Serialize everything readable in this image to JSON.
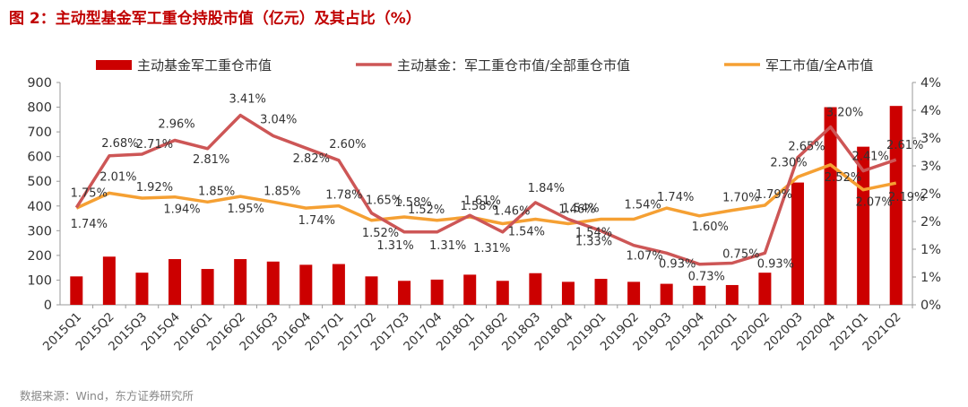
{
  "title": "图 2：主动型基金军工重仓持股市值（亿元）及其占比（%）",
  "source": "数据来源：Wind，东方证券研究所",
  "colors": {
    "bar": "#cc0000",
    "line_share": "#cd5656",
    "line_market": "#f5a033",
    "title": "#c00000"
  },
  "chart_data": {
    "type": "bar",
    "categories": [
      "2015Q1",
      "2015Q2",
      "2015Q3",
      "2015Q4",
      "2016Q1",
      "2016Q2",
      "2016Q3",
      "2016Q4",
      "2017Q1",
      "2017Q2",
      "2017Q3",
      "2017Q4",
      "2018Q1",
      "2018Q2",
      "2018Q3",
      "2018Q4",
      "2019Q1",
      "2019Q2",
      "2019Q3",
      "2019Q4",
      "2020Q1",
      "2020Q2",
      "2020Q3",
      "2020Q4",
      "2021Q1",
      "2021Q2"
    ],
    "legend_position": "top",
    "series": [
      {
        "name": "主动基金军工重仓市值",
        "type": "bar",
        "axis": "left",
        "values": [
          115,
          195,
          130,
          185,
          145,
          185,
          175,
          162,
          165,
          115,
          97,
          102,
          122,
          97,
          128,
          93,
          105,
          93,
          85,
          77,
          80,
          130,
          495,
          800,
          640,
          805
        ]
      },
      {
        "name": "主动基金：军工重仓市值/全部重仓市值",
        "type": "line",
        "axis": "right",
        "values": [
          1.75,
          2.68,
          2.71,
          2.96,
          2.81,
          3.41,
          3.04,
          2.82,
          2.6,
          1.65,
          1.31,
          1.31,
          1.61,
          1.31,
          1.84,
          1.54,
          1.33,
          1.07,
          0.93,
          0.73,
          0.75,
          0.93,
          2.65,
          3.2,
          2.41,
          2.61
        ],
        "labels": [
          "1.75%",
          "2.68%",
          "2.71%",
          "2.96%",
          "2.81%",
          "3.41%",
          "3.04%",
          "2.82%",
          "2.60%",
          "1.65%",
          "1.31%",
          "1.31%",
          "1.61%",
          "1.31%",
          "1.84%",
          "1.54%",
          "1.33%",
          "1.07%",
          "0.93%",
          "0.73%",
          "0.75%",
          "0.93%",
          "2.65%",
          "3.20%",
          "2.41%",
          "2.61%"
        ]
      },
      {
        "name": "军工市值/全A市值",
        "type": "line",
        "axis": "right",
        "values": [
          1.74,
          2.01,
          1.92,
          1.94,
          1.85,
          1.95,
          1.85,
          1.74,
          1.78,
          1.52,
          1.58,
          1.52,
          1.58,
          1.46,
          1.54,
          1.46,
          1.54,
          1.54,
          1.74,
          1.6,
          1.7,
          1.79,
          2.3,
          2.52,
          2.07,
          2.19
        ],
        "labels": [
          "1.74%",
          "2.01%",
          "1.92%",
          "1.94%",
          "1.85%",
          "1.95%",
          "1.85%",
          "1.74%",
          "1.78%",
          "1.52%",
          "1.58%",
          "1.52%",
          "1.58%",
          "1.46%",
          "1.54%",
          "1.46%",
          "1.54%",
          "1.54%",
          "1.74%",
          "1.60%",
          "1.70%",
          "1.79%",
          "2.30%",
          "2.52%",
          "2.07%",
          "2.19%"
        ]
      }
    ],
    "y_left": {
      "ylim": [
        0,
        900
      ],
      "ticks": [
        "0",
        "100",
        "200",
        "300",
        "400",
        "500",
        "600",
        "700",
        "800",
        "900"
      ]
    },
    "y_right": {
      "ylim": [
        0,
        4
      ],
      "ticks": [
        "0%",
        "1%",
        "1%",
        "2%",
        "2%",
        "3%",
        "3%",
        "4%",
        "4%"
      ]
    }
  }
}
